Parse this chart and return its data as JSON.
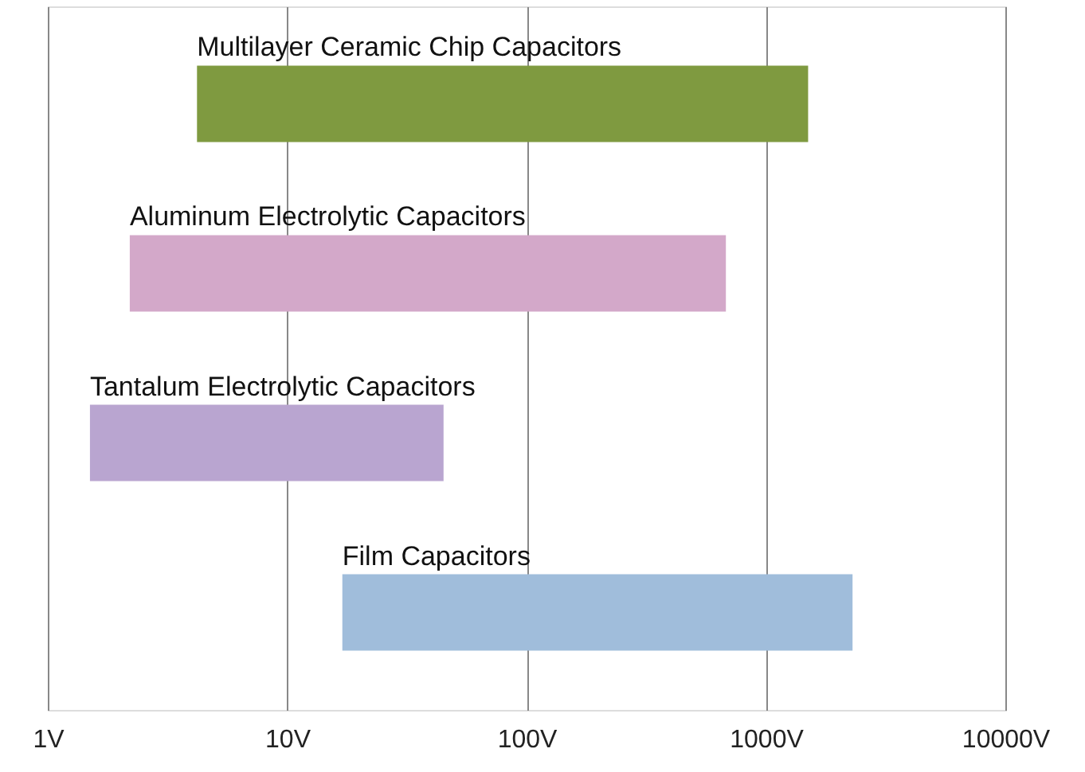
{
  "chart_data": {
    "type": "bar",
    "orientation": "horizontal",
    "log": "x",
    "categories": [
      "Multilayer Ceramic Chip Capacitors",
      "Aluminum Electrolytic Capacitors",
      "Tantalum Electrolytic Capacitors",
      "Film Capacitors"
    ],
    "base": [
      4.2,
      2.2,
      1.5,
      17
    ],
    "values": [
      1496,
      678,
      43.5,
      2283
    ],
    "colors": [
      "#7f9a40",
      "#d3a8c9",
      "#b9a5d0",
      "#a0bddb"
    ],
    "xlim": [
      1,
      10000
    ],
    "xticks": [
      {
        "value": 1,
        "label": "1V"
      },
      {
        "value": 10,
        "label": "10V"
      },
      {
        "value": 100,
        "label": "100V"
      },
      {
        "value": 1000,
        "label": "1000V"
      },
      {
        "value": 10000,
        "label": "10000V"
      }
    ],
    "grid": "x",
    "tick_labels": "x"
  }
}
